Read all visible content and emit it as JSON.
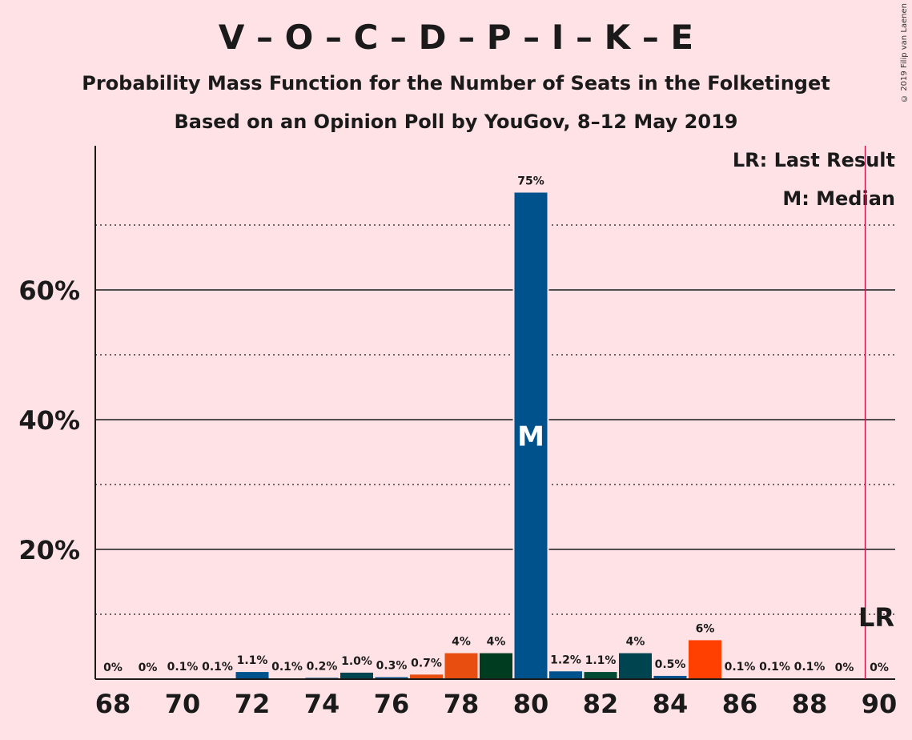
{
  "header": {
    "title": "V – O – C – D – P – I – K – E",
    "subtitle_line1": "Probability Mass Function for the Number of Seats in the Folketinget",
    "subtitle_line2": "Based on an Opinion Poll by YouGov, 8–12 May 2019",
    "copyright": "© 2019 Filip van Laenen"
  },
  "legend": {
    "last_result": "LR: Last Result",
    "median": "M: Median"
  },
  "colors": {
    "background": "#FFE2E6",
    "lr_line": "#C0174F"
  },
  "chart_data": {
    "type": "bar",
    "x": [
      68,
      69,
      70,
      71,
      72,
      73,
      74,
      75,
      76,
      77,
      78,
      79,
      80,
      81,
      82,
      83,
      84,
      85,
      86,
      87,
      88,
      89,
      90
    ],
    "values": [
      0,
      0,
      0.1,
      0.1,
      1.1,
      0.1,
      0.2,
      1.0,
      0.3,
      0.7,
      4,
      4,
      75,
      1.2,
      1.1,
      4,
      0.5,
      6,
      0.1,
      0.1,
      0.1,
      0,
      0
    ],
    "labels": [
      "0%",
      "0%",
      "0.1%",
      "0.1%",
      "1.1%",
      "0.1%",
      "0.2%",
      "1.0%",
      "0.3%",
      "0.7%",
      "4%",
      "4%",
      "75%",
      "1.2%",
      "1.1%",
      "4%",
      "0.5%",
      "6%",
      "0.1%",
      "0.1%",
      "0.1%",
      "0%",
      "0%"
    ],
    "bar_colors": [
      "#00528D",
      "#00528D",
      "#00528D",
      "#00528D",
      "#00528D",
      "#00528D",
      "#00528D",
      "#004450",
      "#00528D",
      "#E84E0F",
      "#E84E0F",
      "#003D20",
      "#00528D",
      "#00528D",
      "#004A33",
      "#004450",
      "#00528D",
      "#FF4000",
      "#00528D",
      "#00528D",
      "#00528D",
      "#00528D",
      "#00528D"
    ],
    "xticks": [
      68,
      70,
      72,
      74,
      76,
      78,
      80,
      82,
      84,
      86,
      88,
      90
    ],
    "xtick_labels": [
      "68",
      "70",
      "72",
      "74",
      "76",
      "78",
      "80",
      "82",
      "84",
      "86",
      "88",
      "90"
    ],
    "yticks": [
      20,
      40,
      60
    ],
    "ytick_labels": [
      "20%",
      "40%",
      "60%"
    ],
    "ylim": [
      0,
      82
    ],
    "xlim": [
      67.5,
      90.5
    ],
    "median": 80,
    "median_label": "M",
    "last_result": 89.6,
    "last_result_label": "LR",
    "grid": "solid major at 20/40/60, dotted minor at 10/30/50/70"
  }
}
